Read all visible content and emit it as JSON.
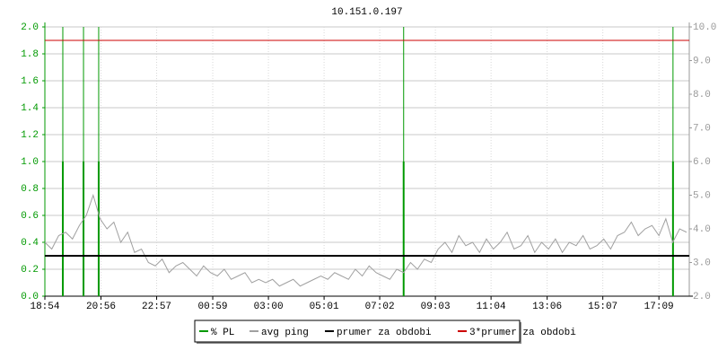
{
  "chart_data": {
    "type": "line",
    "title": "10.151.0.197",
    "xlim": [
      0,
      23.35
    ],
    "xticks": [
      {
        "value": 0,
        "label": "18:54"
      },
      {
        "value": 2.033,
        "label": "20:56"
      },
      {
        "value": 4.05,
        "label": "22:57"
      },
      {
        "value": 6.083,
        "label": "00:59"
      },
      {
        "value": 8.1,
        "label": "03:00"
      },
      {
        "value": 10.117,
        "label": "05:01"
      },
      {
        "value": 12.133,
        "label": "07:02"
      },
      {
        "value": 14.15,
        "label": "09:03"
      },
      {
        "value": 16.167,
        "label": "11:04"
      },
      {
        "value": 18.2,
        "label": "13:06"
      },
      {
        "value": 20.217,
        "label": "15:07"
      },
      {
        "value": 22.25,
        "label": "17:09"
      }
    ],
    "ylim": [
      0,
      2
    ],
    "yticks": [
      {
        "value": 0,
        "label": "0.0"
      },
      0.2,
      0.4,
      0.6,
      0.8,
      {
        "value": 1,
        "label": "1.0"
      },
      1.2,
      1.4,
      1.6,
      1.8,
      {
        "value": 2,
        "label": "2.0"
      }
    ],
    "y2lim": [
      2,
      10
    ],
    "y2ticks": [
      {
        "value": 2,
        "label": "2.0"
      },
      {
        "value": 3,
        "label": "3.0"
      },
      {
        "value": 4,
        "label": "4.0"
      },
      {
        "value": 5,
        "label": "5.0"
      },
      {
        "value": 6,
        "label": "6.0"
      },
      {
        "value": 7,
        "label": "7.0"
      },
      {
        "value": 8,
        "label": "8.0"
      },
      {
        "value": 9,
        "label": "9.0"
      },
      {
        "value": 10,
        "label": "10.0"
      }
    ],
    "grid": true,
    "series": [
      {
        "name": "% PL",
        "color": "#009900",
        "x": [
          0.65,
          1.4,
          1.95,
          13.0,
          22.76
        ],
        "values": [
          1,
          1,
          1,
          1,
          1
        ]
      },
      {
        "name": "avg ping",
        "color": "#a0a0a0",
        "axis": "y2",
        "x": [
          0,
          0.25,
          0.5,
          0.75,
          1,
          1.25,
          1.5,
          1.75,
          2,
          2.25,
          2.5,
          2.75,
          3,
          3.25,
          3.5,
          3.75,
          4,
          4.25,
          4.5,
          4.75,
          5,
          5.25,
          5.5,
          5.75,
          6,
          6.25,
          6.5,
          6.75,
          7,
          7.25,
          7.5,
          7.75,
          8,
          8.25,
          8.5,
          8.75,
          9,
          9.25,
          9.5,
          9.75,
          10,
          10.25,
          10.5,
          10.75,
          11,
          11.25,
          11.5,
          11.75,
          12,
          12.25,
          12.5,
          12.75,
          13,
          13.25,
          13.5,
          13.75,
          14,
          14.25,
          14.5,
          14.75,
          15,
          15.25,
          15.5,
          15.75,
          16,
          16.25,
          16.5,
          16.75,
          17,
          17.25,
          17.5,
          17.75,
          18,
          18.25,
          18.5,
          18.75,
          19,
          19.25,
          19.5,
          19.75,
          20,
          20.25,
          20.5,
          20.75,
          21,
          21.25,
          21.5,
          21.75,
          22,
          22.25,
          22.5,
          22.75,
          23,
          23.25
        ],
        "values": [
          3.6,
          3.4,
          3.8,
          3.9,
          3.7,
          4.1,
          4.4,
          5.0,
          4.3,
          4.0,
          4.2,
          3.6,
          3.9,
          3.3,
          3.4,
          3.0,
          2.9,
          3.1,
          2.7,
          2.9,
          3.0,
          2.8,
          2.6,
          2.9,
          2.7,
          2.6,
          2.8,
          2.5,
          2.6,
          2.7,
          2.4,
          2.5,
          2.4,
          2.5,
          2.3,
          2.4,
          2.5,
          2.3,
          2.4,
          2.5,
          2.6,
          2.5,
          2.7,
          2.6,
          2.5,
          2.8,
          2.6,
          2.9,
          2.7,
          2.6,
          2.5,
          2.8,
          2.7,
          3.0,
          2.8,
          3.1,
          3.0,
          3.4,
          3.6,
          3.3,
          3.8,
          3.5,
          3.6,
          3.3,
          3.7,
          3.4,
          3.6,
          3.9,
          3.4,
          3.5,
          3.8,
          3.3,
          3.6,
          3.4,
          3.7,
          3.3,
          3.6,
          3.5,
          3.8,
          3.4,
          3.5,
          3.7,
          3.4,
          3.8,
          3.9,
          4.2,
          3.8,
          4.0,
          4.1,
          3.8,
          4.3,
          3.6,
          4.0,
          3.9
        ]
      },
      {
        "name": "prumer za obdobi",
        "color": "#000000",
        "axis": "y2",
        "value": 3.2
      },
      {
        "name": "3*prumer za obdobi",
        "color": "#cc0000",
        "axis": "y2",
        "value": 9.6
      }
    ]
  }
}
